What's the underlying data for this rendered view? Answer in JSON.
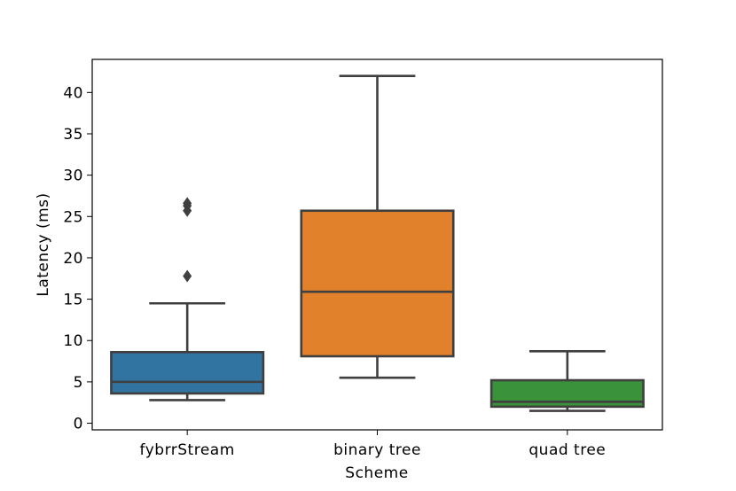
{
  "chart_data": {
    "type": "box",
    "xlabel": "Scheme",
    "ylabel": "Latency (ms)",
    "ylim": [
      -0.8,
      44
    ],
    "yticks": [
      0,
      5,
      10,
      15,
      20,
      25,
      30,
      35,
      40
    ],
    "grid": false,
    "categories": [
      "fybrrStream",
      "binary tree",
      "quad tree"
    ],
    "series": [
      {
        "category": "fybrrStream",
        "color": "#3274a1",
        "whisker_low": 2.8,
        "q1": 3.6,
        "median": 5.0,
        "q3": 8.6,
        "whisker_high": 14.5,
        "outliers": [
          17.8,
          25.7,
          26.3,
          26.6
        ]
      },
      {
        "category": "binary tree",
        "color": "#e1812c",
        "whisker_low": 5.5,
        "q1": 8.1,
        "median": 15.9,
        "q3": 25.7,
        "whisker_high": 42.0,
        "outliers": []
      },
      {
        "category": "quad tree",
        "color": "#3a923a",
        "whisker_low": 1.5,
        "q1": 2.0,
        "median": 2.6,
        "q3": 5.2,
        "whisker_high": 8.7,
        "outliers": []
      }
    ]
  }
}
